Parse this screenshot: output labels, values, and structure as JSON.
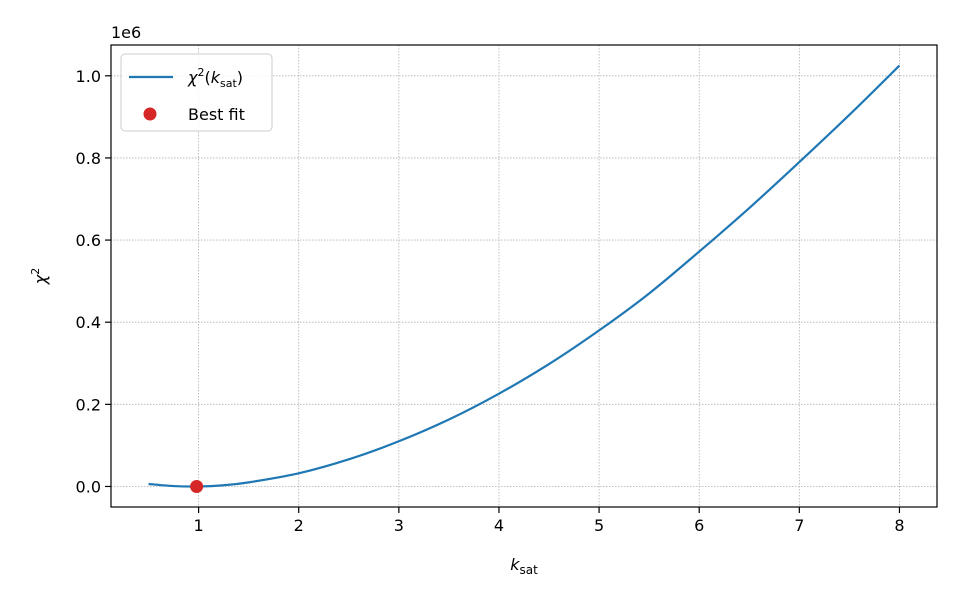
{
  "chart_data": {
    "type": "line",
    "title": "",
    "xlabel": "k_sat",
    "ylabel": "χ²",
    "y_multiplier_label": "1e6",
    "xlim": [
      0.125,
      8.375
    ],
    "ylim": [
      -0.05,
      1.075
    ],
    "x_ticks": [
      1,
      2,
      3,
      4,
      5,
      6,
      7,
      8
    ],
    "x_tick_labels": [
      "1",
      "2",
      "3",
      "4",
      "5",
      "6",
      "7",
      "8"
    ],
    "y_ticks": [
      0.0,
      0.2,
      0.4,
      0.6,
      0.8,
      1.0
    ],
    "y_tick_labels": [
      "0.0",
      "0.2",
      "0.4",
      "0.6",
      "0.8",
      "1.0"
    ],
    "grid": true,
    "legend_position": "top-left",
    "series": [
      {
        "name": "χ²(k_sat)",
        "kind": "line",
        "color": "#1f77b4",
        "x": [
          0.5,
          0.75,
          1.0,
          1.25,
          1.5,
          2.0,
          2.5,
          3.0,
          3.5,
          4.0,
          4.5,
          5.0,
          5.5,
          6.0,
          6.5,
          7.0,
          7.5,
          8.0
        ],
        "y": [
          0.006,
          0.001,
          0.0,
          0.003,
          0.01,
          0.032,
          0.066,
          0.11,
          0.163,
          0.226,
          0.298,
          0.38,
          0.47,
          0.572,
          0.678,
          0.79,
          0.905,
          1.025
        ]
      },
      {
        "name": "Best fit",
        "kind": "point",
        "color": "#d62728",
        "x": [
          0.98
        ],
        "y": [
          0.0
        ]
      }
    ]
  }
}
